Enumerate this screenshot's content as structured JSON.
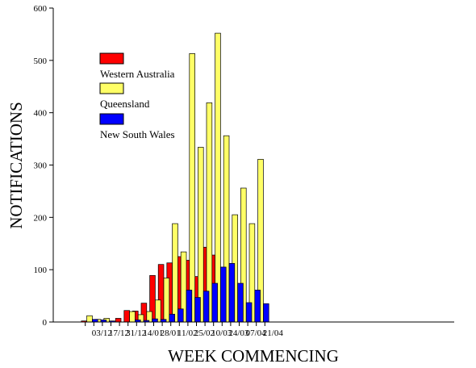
{
  "chart_data": {
    "type": "bar",
    "title": "",
    "xlabel": "WEEK COMMENCING",
    "ylabel": "NOTIFICATIONS",
    "ylim": [
      0,
      600
    ],
    "yticks": [
      0,
      100,
      200,
      300,
      400,
      500,
      600
    ],
    "grid": false,
    "legend_position": "top-left",
    "x_tick_labels": [
      "03/12",
      "17/12",
      "31/12",
      "14/01",
      "28/01",
      "11/02",
      "25/02",
      "10/03",
      "24/03",
      "07/04",
      "21/04"
    ],
    "series": [
      {
        "name": "Western Australia",
        "color": "#ff0000",
        "values": [
          2,
          3,
          2,
          0,
          7,
          22,
          21,
          36,
          89,
          110,
          113,
          125,
          118,
          87,
          143,
          128,
          89,
          56,
          47,
          32,
          22
        ]
      },
      {
        "name": "Queensland",
        "color": "#ffff66",
        "values": [
          12,
          5,
          7,
          0,
          0,
          20,
          14,
          20,
          42,
          84,
          188,
          134,
          513,
          334,
          419,
          552,
          356,
          205,
          256,
          188,
          311
        ]
      },
      {
        "name": "New South Wales",
        "color": "#0000ff",
        "values": [
          5,
          4,
          2,
          0,
          0,
          4,
          3,
          6,
          5,
          15,
          25,
          61,
          47,
          59,
          74,
          105,
          112,
          74,
          37,
          61,
          35
        ]
      }
    ]
  }
}
